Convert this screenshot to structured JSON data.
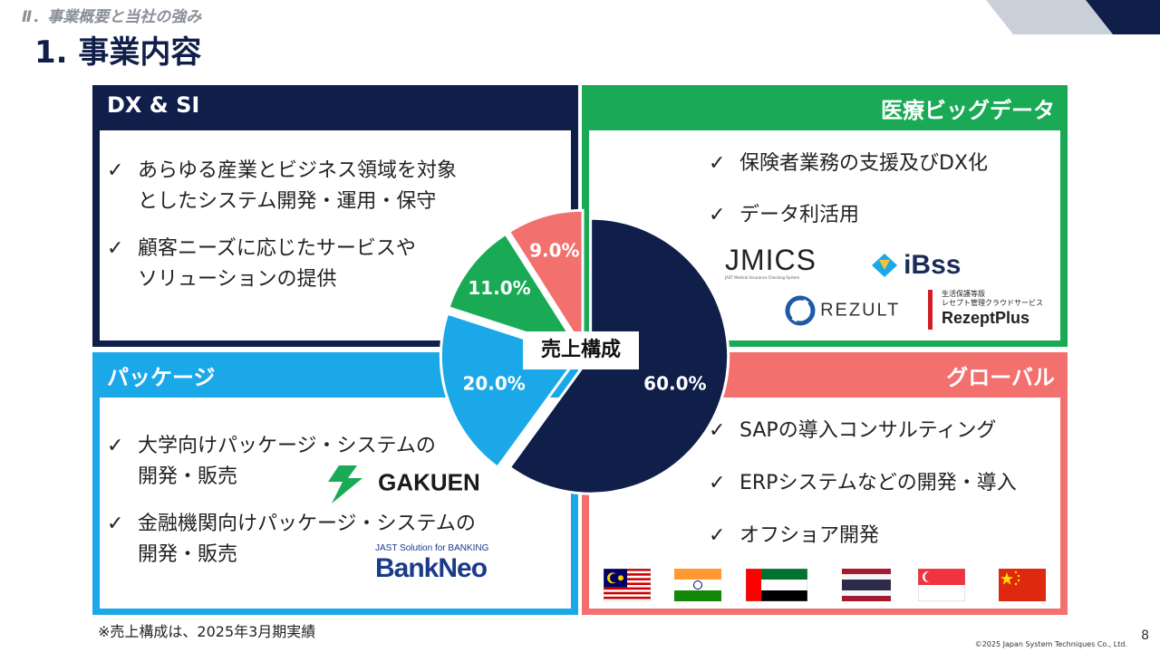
{
  "header": {
    "section": "Ⅱ．事業概要と当社の強み",
    "title": "1. 事業内容"
  },
  "quadrants": {
    "dx": {
      "title": "DX & SI",
      "color": "#0f1f4a",
      "bullets": [
        {
          "line1": "あらゆる産業とビジネス領域を対象",
          "line2": "としたシステム開発・運用・保守"
        },
        {
          "line1": "顧客ニーズに応じたサービスや",
          "line2": "ソリューションの提供"
        }
      ]
    },
    "medical": {
      "title": "医療ビッグデータ",
      "color": "#1aaa55",
      "bullets": [
        {
          "line1": "保険者業務の支援及びDX化"
        },
        {
          "line1": "データ利活用"
        }
      ],
      "logos": {
        "jmics": "JMICS",
        "jmics_sub": "JAST Medical Insurance Checking System",
        "ibss": "iBss",
        "rezult": "REZULT",
        "rezept_top1": "生活保護等版",
        "rezept_top2": "レセプト管理クラウドサービス",
        "rezept_main": "RezeptPlus"
      }
    },
    "package": {
      "title": "パッケージ",
      "color": "#1ba8e8",
      "bullets": [
        {
          "line1": "大学向けパッケージ・システムの",
          "line2": "開発・販売"
        },
        {
          "line1": "金融機関向けパッケージ・システムの",
          "line2": "開発・販売"
        }
      ],
      "logos": {
        "gakuen": "GAKUEN",
        "bankneo_sub": "JAST Solution for BANKING",
        "bankneo": "BankNeo"
      }
    },
    "global": {
      "title": "グローバル",
      "color": "#f2706e",
      "bullets": [
        {
          "line1": "SAPの導入コンサルティング"
        },
        {
          "line1": "ERPシステムなどの開発・導入"
        },
        {
          "line1": "オフショア開発"
        }
      ],
      "flags": [
        "malaysia-flag",
        "india-flag",
        "uae-flag",
        "thailand-flag",
        "singapore-flag",
        "china-flag"
      ]
    }
  },
  "check_mark": "✓",
  "chart_data": {
    "type": "pie",
    "title": "売上構成",
    "slices": [
      {
        "label": "60.0%",
        "value": 60.0,
        "color": "#0f1f4a"
      },
      {
        "label": "20.0%",
        "value": 20.0,
        "color": "#1ba8e8"
      },
      {
        "label": "11.0%",
        "value": 11.0,
        "color": "#1aaa55"
      },
      {
        "label": "9.0%",
        "value": 9.0,
        "color": "#f2706e"
      }
    ]
  },
  "footnote": "※売上構成は、2025年3月期実績",
  "copyright": "©2025 Japan System Techniques Co., Ltd.",
  "page_number": "8"
}
